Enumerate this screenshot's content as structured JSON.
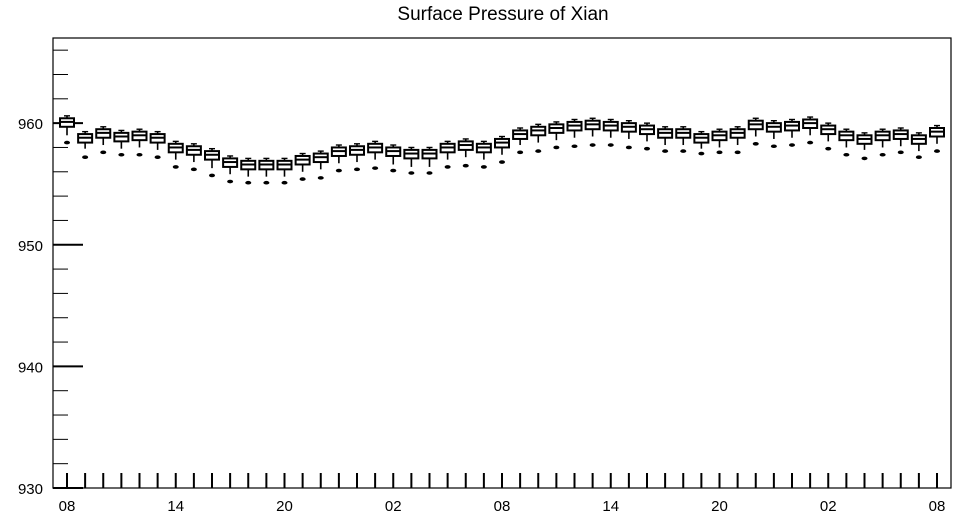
{
  "chart_data": {
    "type": "box",
    "title": "Surface Pressure of Xian",
    "xlabel": "",
    "ylabel": "",
    "ylim": [
      930,
      967
    ],
    "yticks": [
      930,
      940,
      950,
      960
    ],
    "xtick_labels": [
      "08",
      "14",
      "20",
      "02",
      "08",
      "14",
      "20",
      "02",
      "08"
    ],
    "xtick_hours": [
      0,
      6,
      12,
      18,
      24,
      30,
      36,
      42,
      48
    ],
    "x_step_hours": 1,
    "hours": [
      0,
      1,
      2,
      3,
      4,
      5,
      6,
      7,
      8,
      9,
      10,
      11,
      12,
      13,
      14,
      15,
      16,
      17,
      18,
      19,
      20,
      21,
      22,
      23,
      24,
      25,
      26,
      27,
      28,
      29,
      30,
      31,
      32,
      33,
      34,
      35,
      36,
      37,
      38,
      39,
      40,
      41,
      42,
      43,
      44,
      45,
      46,
      47,
      48
    ],
    "median": [
      960.1,
      958.8,
      959.2,
      958.9,
      959.0,
      958.8,
      958.0,
      957.8,
      957.4,
      956.8,
      956.6,
      956.6,
      956.6,
      957.0,
      957.2,
      957.7,
      957.8,
      958.0,
      957.7,
      957.5,
      957.5,
      958.0,
      958.2,
      958.0,
      958.4,
      959.1,
      959.4,
      959.6,
      959.8,
      959.9,
      959.8,
      959.7,
      959.5,
      959.2,
      959.2,
      958.8,
      959.0,
      959.2,
      959.9,
      959.7,
      959.8,
      960.0,
      959.5,
      959.0,
      958.7,
      959.0,
      959.1,
      958.7,
      959.3
    ],
    "q1": [
      959.7,
      958.4,
      958.8,
      958.5,
      958.6,
      958.4,
      957.6,
      957.4,
      957.0,
      956.4,
      956.2,
      956.2,
      956.2,
      956.6,
      956.8,
      957.3,
      957.4,
      957.6,
      957.3,
      957.1,
      957.1,
      957.6,
      957.8,
      957.6,
      958.0,
      958.7,
      959.0,
      959.2,
      959.4,
      959.5,
      959.4,
      959.3,
      959.1,
      958.8,
      958.8,
      958.4,
      958.6,
      958.8,
      959.5,
      959.3,
      959.4,
      959.6,
      959.1,
      958.6,
      958.3,
      958.6,
      958.7,
      958.3,
      958.9
    ],
    "q3": [
      960.4,
      959.1,
      959.5,
      959.2,
      959.3,
      959.1,
      958.3,
      958.1,
      957.7,
      957.1,
      956.9,
      956.9,
      956.9,
      957.3,
      957.5,
      958.0,
      958.1,
      958.3,
      958.0,
      957.8,
      957.8,
      958.3,
      958.5,
      958.3,
      958.7,
      959.4,
      959.7,
      959.9,
      960.1,
      960.2,
      960.1,
      960.0,
      959.8,
      959.5,
      959.5,
      959.1,
      959.3,
      959.5,
      960.2,
      960.0,
      960.1,
      960.3,
      959.8,
      959.3,
      959.0,
      959.3,
      959.4,
      959.0,
      959.6
    ],
    "whisker_low": [
      959.0,
      957.9,
      958.2,
      957.9,
      958.0,
      957.8,
      957.0,
      956.8,
      956.3,
      955.8,
      955.6,
      955.6,
      955.6,
      956.0,
      956.2,
      956.7,
      956.8,
      957.0,
      956.6,
      956.4,
      956.4,
      957.0,
      957.2,
      957.0,
      957.4,
      958.2,
      958.4,
      958.6,
      958.8,
      958.9,
      958.8,
      958.7,
      958.5,
      958.2,
      958.2,
      957.9,
      958.0,
      958.2,
      958.9,
      958.7,
      958.8,
      959.0,
      958.5,
      958.0,
      957.8,
      958.0,
      958.1,
      957.7,
      958.3
    ],
    "whisker_high": [
      960.6,
      959.3,
      959.7,
      959.4,
      959.5,
      959.3,
      958.5,
      958.3,
      957.9,
      957.3,
      957.1,
      957.1,
      957.1,
      957.5,
      957.7,
      958.2,
      958.3,
      958.5,
      958.2,
      958.0,
      958.0,
      958.5,
      958.7,
      958.5,
      958.9,
      959.6,
      959.9,
      960.1,
      960.3,
      960.4,
      960.3,
      960.2,
      960.0,
      959.7,
      959.7,
      959.3,
      959.5,
      959.7,
      960.4,
      960.2,
      960.3,
      960.5,
      960.0,
      959.5,
      959.2,
      959.5,
      959.6,
      959.2,
      959.8
    ],
    "outliers": [
      958.4,
      957.2,
      957.6,
      957.4,
      957.4,
      957.2,
      956.4,
      956.2,
      955.7,
      955.2,
      955.1,
      955.1,
      955.1,
      955.4,
      955.5,
      956.1,
      956.2,
      956.3,
      956.1,
      955.9,
      955.9,
      956.4,
      956.5,
      956.4,
      956.8,
      957.6,
      957.7,
      958.0,
      958.1,
      958.2,
      958.2,
      958.0,
      957.9,
      957.7,
      957.7,
      957.5,
      957.6,
      957.6,
      958.3,
      958.1,
      958.2,
      958.4,
      957.9,
      957.4,
      957.1,
      957.4,
      957.6,
      957.2,
      957.7
    ],
    "grid": false,
    "legend": "none"
  }
}
